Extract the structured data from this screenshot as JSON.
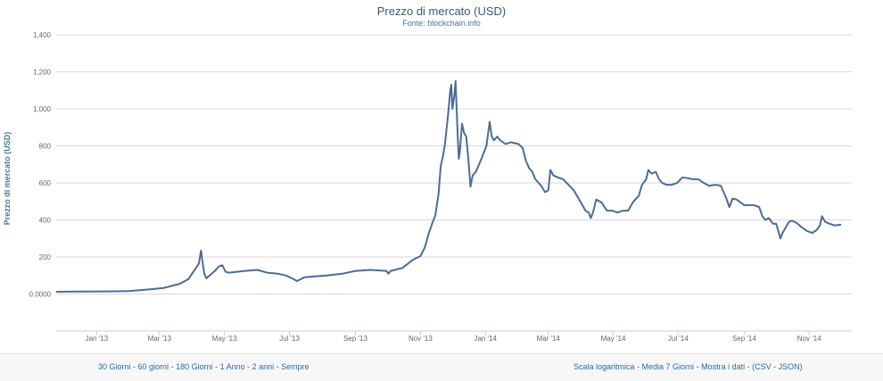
{
  "chart_data": {
    "type": "line",
    "title": "Prezzo di mercato (USD)",
    "subtitle": "Fonte: blockchain.info",
    "ylabel": "Prezzo di mercato (USD)",
    "xlabel": "",
    "ylim": [
      -200,
      1400
    ],
    "xlim": [
      "2012-11-24",
      "2014-12-11"
    ],
    "grid": true,
    "yticks": [
      {
        "value": 0,
        "label": "0.0000"
      },
      {
        "value": 200,
        "label": "200"
      },
      {
        "value": 400,
        "label": "400"
      },
      {
        "value": 600,
        "label": "600"
      },
      {
        "value": 800,
        "label": "800"
      },
      {
        "value": 1000,
        "label": "1,000"
      },
      {
        "value": 1200,
        "label": "1,200"
      },
      {
        "value": 1400,
        "label": "1,400"
      }
    ],
    "xticks": [
      {
        "date": "2013-01-01",
        "label": "Jan '13"
      },
      {
        "date": "2013-03-01",
        "label": "Mar '13"
      },
      {
        "date": "2013-05-01",
        "label": "May '13"
      },
      {
        "date": "2013-07-01",
        "label": "Jul '13"
      },
      {
        "date": "2013-09-01",
        "label": "Sep '13"
      },
      {
        "date": "2013-11-01",
        "label": "Nov '13"
      },
      {
        "date": "2014-01-01",
        "label": "Jan '14"
      },
      {
        "date": "2014-03-01",
        "label": "Mar '14"
      },
      {
        "date": "2014-05-01",
        "label": "May '14"
      },
      {
        "date": "2014-07-01",
        "label": "Jul '14"
      },
      {
        "date": "2014-09-01",
        "label": "Sep '14"
      },
      {
        "date": "2014-11-01",
        "label": "Nov '14"
      }
    ],
    "series": [
      {
        "color": "#4d6c96",
        "points": [
          [
            "2012-11-24",
            12
          ],
          [
            "2012-12-15",
            13
          ],
          [
            "2013-01-10",
            14
          ],
          [
            "2013-01-31",
            16
          ],
          [
            "2013-02-20",
            25
          ],
          [
            "2013-03-05",
            33
          ],
          [
            "2013-03-20",
            55
          ],
          [
            "2013-03-28",
            80
          ],
          [
            "2013-04-03",
            130
          ],
          [
            "2013-04-07",
            165
          ],
          [
            "2013-04-09",
            235
          ],
          [
            "2013-04-10",
            190
          ],
          [
            "2013-04-12",
            110
          ],
          [
            "2013-04-14",
            85
          ],
          [
            "2013-04-18",
            105
          ],
          [
            "2013-04-22",
            125
          ],
          [
            "2013-04-26",
            150
          ],
          [
            "2013-04-29",
            155
          ],
          [
            "2013-05-02",
            120
          ],
          [
            "2013-05-05",
            115
          ],
          [
            "2013-05-10",
            118
          ],
          [
            "2013-05-20",
            125
          ],
          [
            "2013-06-01",
            130
          ],
          [
            "2013-06-10",
            115
          ],
          [
            "2013-06-20",
            110
          ],
          [
            "2013-06-28",
            100
          ],
          [
            "2013-07-05",
            80
          ],
          [
            "2013-07-08",
            70
          ],
          [
            "2013-07-15",
            90
          ],
          [
            "2013-07-25",
            95
          ],
          [
            "2013-08-05",
            100
          ],
          [
            "2013-08-20",
            110
          ],
          [
            "2013-09-01",
            125
          ],
          [
            "2013-09-15",
            130
          ],
          [
            "2013-09-30",
            125
          ],
          [
            "2013-10-02",
            110
          ],
          [
            "2013-10-04",
            125
          ],
          [
            "2013-10-15",
            140
          ],
          [
            "2013-10-25",
            185
          ],
          [
            "2013-11-01",
            205
          ],
          [
            "2013-11-05",
            250
          ],
          [
            "2013-11-09",
            330
          ],
          [
            "2013-11-12",
            380
          ],
          [
            "2013-11-15",
            425
          ],
          [
            "2013-11-18",
            540
          ],
          [
            "2013-11-20",
            690
          ],
          [
            "2013-11-22",
            740
          ],
          [
            "2013-11-24",
            810
          ],
          [
            "2013-11-27",
            970
          ],
          [
            "2013-11-29",
            1100
          ],
          [
            "2013-11-30",
            1130
          ],
          [
            "2013-12-01",
            1000
          ],
          [
            "2013-12-03",
            1080
          ],
          [
            "2013-12-04",
            1150
          ],
          [
            "2013-12-05",
            1000
          ],
          [
            "2013-12-06",
            850
          ],
          [
            "2013-12-07",
            730
          ],
          [
            "2013-12-08",
            770
          ],
          [
            "2013-12-10",
            920
          ],
          [
            "2013-12-12",
            870
          ],
          [
            "2013-12-14",
            850
          ],
          [
            "2013-12-16",
            730
          ],
          [
            "2013-12-18",
            580
          ],
          [
            "2013-12-20",
            640
          ],
          [
            "2013-12-23",
            660
          ],
          [
            "2013-12-26",
            700
          ],
          [
            "2013-12-29",
            740
          ],
          [
            "2014-01-02",
            800
          ],
          [
            "2014-01-05",
            930
          ],
          [
            "2014-01-07",
            850
          ],
          [
            "2014-01-09",
            830
          ],
          [
            "2014-01-12",
            850
          ],
          [
            "2014-01-15",
            830
          ],
          [
            "2014-01-20",
            810
          ],
          [
            "2014-01-25",
            820
          ],
          [
            "2014-02-01",
            810
          ],
          [
            "2014-02-05",
            790
          ],
          [
            "2014-02-08",
            720
          ],
          [
            "2014-02-11",
            680
          ],
          [
            "2014-02-14",
            660
          ],
          [
            "2014-02-17",
            620
          ],
          [
            "2014-02-20",
            600
          ],
          [
            "2014-02-23",
            580
          ],
          [
            "2014-02-26",
            550
          ],
          [
            "2014-03-01",
            560
          ],
          [
            "2014-03-03",
            670
          ],
          [
            "2014-03-06",
            640
          ],
          [
            "2014-03-10",
            630
          ],
          [
            "2014-03-15",
            620
          ],
          [
            "2014-03-20",
            590
          ],
          [
            "2014-03-25",
            560
          ],
          [
            "2014-04-01",
            490
          ],
          [
            "2014-04-05",
            450
          ],
          [
            "2014-04-08",
            440
          ],
          [
            "2014-04-10",
            410
          ],
          [
            "2014-04-12",
            440
          ],
          [
            "2014-04-15",
            510
          ],
          [
            "2014-04-20",
            495
          ],
          [
            "2014-04-25",
            450
          ],
          [
            "2014-04-30",
            450
          ],
          [
            "2014-05-05",
            440
          ],
          [
            "2014-05-10",
            450
          ],
          [
            "2014-05-15",
            450
          ],
          [
            "2014-05-20",
            500
          ],
          [
            "2014-05-25",
            530
          ],
          [
            "2014-05-28",
            590
          ],
          [
            "2014-06-01",
            620
          ],
          [
            "2014-06-03",
            670
          ],
          [
            "2014-06-06",
            650
          ],
          [
            "2014-06-10",
            660
          ],
          [
            "2014-06-13",
            620
          ],
          [
            "2014-06-16",
            600
          ],
          [
            "2014-06-20",
            590
          ],
          [
            "2014-06-25",
            590
          ],
          [
            "2014-06-30",
            600
          ],
          [
            "2014-07-05",
            630
          ],
          [
            "2014-07-10",
            625
          ],
          [
            "2014-07-15",
            620
          ],
          [
            "2014-07-20",
            620
          ],
          [
            "2014-07-25",
            600
          ],
          [
            "2014-07-30",
            585
          ],
          [
            "2014-08-05",
            590
          ],
          [
            "2014-08-10",
            585
          ],
          [
            "2014-08-15",
            520
          ],
          [
            "2014-08-18",
            470
          ],
          [
            "2014-08-21",
            515
          ],
          [
            "2014-08-25",
            510
          ],
          [
            "2014-09-01",
            480
          ],
          [
            "2014-09-05",
            480
          ],
          [
            "2014-09-10",
            480
          ],
          [
            "2014-09-15",
            470
          ],
          [
            "2014-09-18",
            420
          ],
          [
            "2014-09-21",
            400
          ],
          [
            "2014-09-24",
            410
          ],
          [
            "2014-09-28",
            380
          ],
          [
            "2014-10-01",
            380
          ],
          [
            "2014-10-03",
            340
          ],
          [
            "2014-10-05",
            300
          ],
          [
            "2014-10-07",
            330
          ],
          [
            "2014-10-10",
            360
          ],
          [
            "2014-10-13",
            390
          ],
          [
            "2014-10-16",
            395
          ],
          [
            "2014-10-20",
            385
          ],
          [
            "2014-10-25",
            360
          ],
          [
            "2014-10-30",
            340
          ],
          [
            "2014-11-04",
            330
          ],
          [
            "2014-11-08",
            345
          ],
          [
            "2014-11-11",
            370
          ],
          [
            "2014-11-13",
            420
          ],
          [
            "2014-11-16",
            390
          ],
          [
            "2014-11-20",
            380
          ],
          [
            "2014-11-25",
            370
          ],
          [
            "2014-12-01",
            375
          ]
        ]
      }
    ]
  },
  "footer": {
    "left_links": [
      "30 Giorni",
      "60 giorni",
      "180 Giorni",
      "1 Anno",
      "2 anni",
      "Sempre"
    ],
    "right_links": [
      "Scala logaritmica",
      "Media 7 Giorni",
      "Mostra i dati",
      "(CSV",
      "JSON)"
    ]
  }
}
